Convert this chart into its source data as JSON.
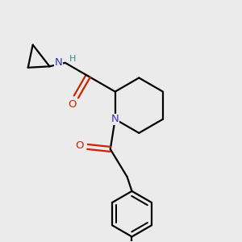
{
  "background_color": "#ebebeb",
  "bond_color": "#000000",
  "N_color": "#3333cc",
  "O_color": "#cc2200",
  "H_color": "#2a9090",
  "line_width": 1.6,
  "figsize": [
    3.0,
    3.0
  ],
  "dpi": 100,
  "xlim": [
    0.0,
    1.0
  ],
  "ylim": [
    0.0,
    1.0
  ]
}
